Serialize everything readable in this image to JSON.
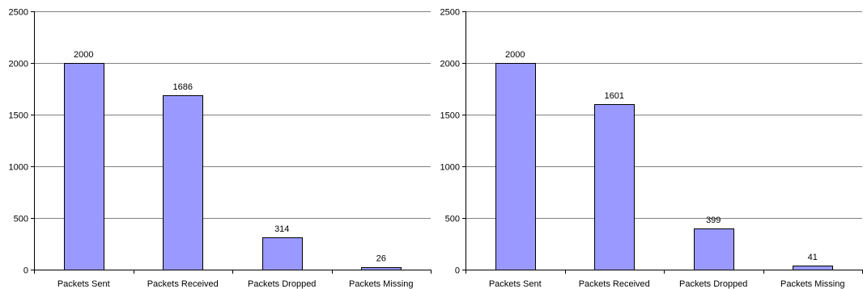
{
  "chart_data": [
    {
      "type": "bar",
      "title": "",
      "xlabel": "",
      "ylabel": "",
      "categories": [
        "Packets Sent",
        "Packets Received",
        "Packets Dropped",
        "Packets Missing"
      ],
      "values": [
        2000,
        1686,
        314,
        26
      ],
      "ylim": [
        0,
        2500
      ],
      "yticks": [
        "0",
        "500",
        "1000",
        "1500",
        "2000",
        "2500"
      ],
      "data_labels": [
        "2000",
        "1686",
        "314",
        "26"
      ],
      "grid": true,
      "legend": "none",
      "bar_color": "#9999ff",
      "bar_edge_color": "#000000"
    },
    {
      "type": "bar",
      "title": "",
      "xlabel": "",
      "ylabel": "",
      "categories": [
        "Packets Sent",
        "Packets Received",
        "Packets Dropped",
        "Packets Missing"
      ],
      "values": [
        2000,
        1601,
        399,
        41
      ],
      "ylim": [
        0,
        2500
      ],
      "yticks": [
        "0",
        "500",
        "1000",
        "1500",
        "2000",
        "2500"
      ],
      "data_labels": [
        "2000",
        "1601",
        "399",
        "41"
      ],
      "grid": true,
      "legend": "none",
      "bar_color": "#9999ff",
      "bar_edge_color": "#000000"
    }
  ]
}
